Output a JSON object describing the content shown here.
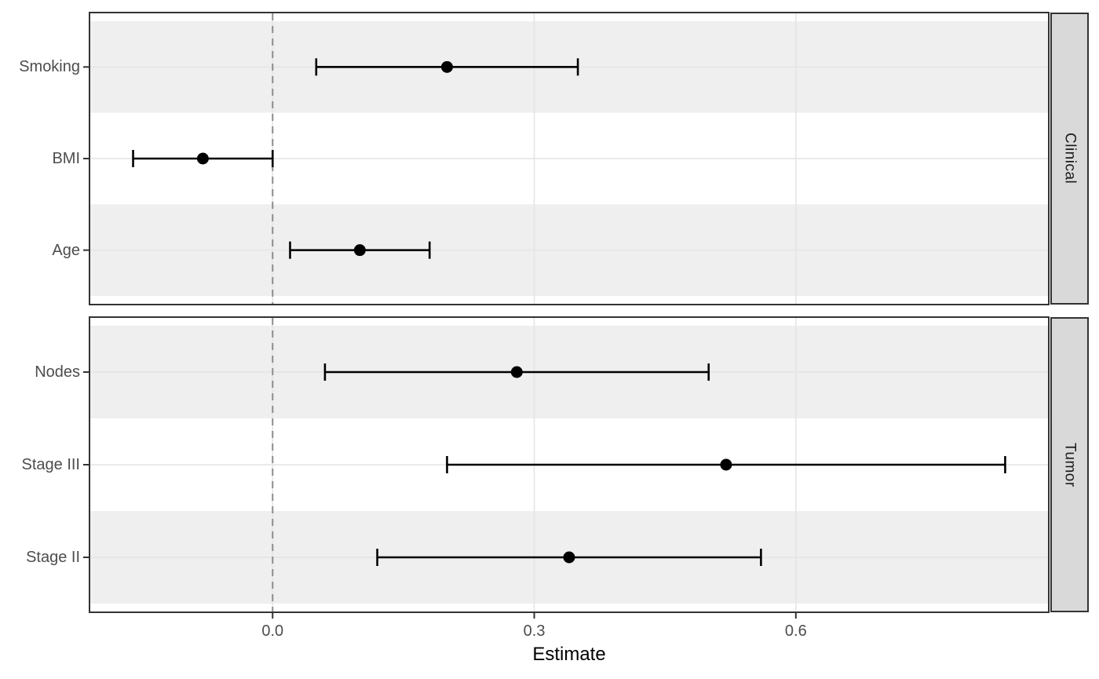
{
  "chart_data": {
    "type": "scatter",
    "subtype": "forest-plot-pointrange",
    "xlabel": "Estimate",
    "ylabel": "",
    "xlim": [
      -0.21,
      0.89
    ],
    "x_ticks": [
      0.0,
      0.3,
      0.6
    ],
    "x_tick_labels": [
      "0.0",
      "0.3",
      "0.6"
    ],
    "reference_line_x": 0.0,
    "reference_line_style": "dashed",
    "grid": true,
    "legend": null,
    "facets": [
      {
        "label": "Clinical",
        "rows": [
          {
            "label": "Smoking",
            "estimate": 0.2,
            "ci_low": 0.05,
            "ci_high": 0.35
          },
          {
            "label": "BMI",
            "estimate": -0.08,
            "ci_low": -0.16,
            "ci_high": 0.0
          },
          {
            "label": "Age",
            "estimate": 0.1,
            "ci_low": 0.02,
            "ci_high": 0.18
          }
        ]
      },
      {
        "label": "Tumor",
        "rows": [
          {
            "label": "Nodes",
            "estimate": 0.28,
            "ci_low": 0.06,
            "ci_high": 0.5
          },
          {
            "label": "Stage III",
            "estimate": 0.52,
            "ci_low": 0.2,
            "ci_high": 0.84
          },
          {
            "label": "Stage II",
            "estimate": 0.34,
            "ci_low": 0.12,
            "ci_high": 0.56
          }
        ]
      }
    ],
    "colors": {
      "point_and_range": "#000000",
      "row_band": "#efefef",
      "panel_background": "#ffffff",
      "panel_border": "#333333",
      "gridline": "#e4e4e4",
      "reference_line": "#8c8c8c",
      "strip_background": "#d9d9d9",
      "strip_text": "#1a1a1a",
      "axis_text": "#4d4d4d",
      "axis_title_text": "#000000"
    }
  }
}
